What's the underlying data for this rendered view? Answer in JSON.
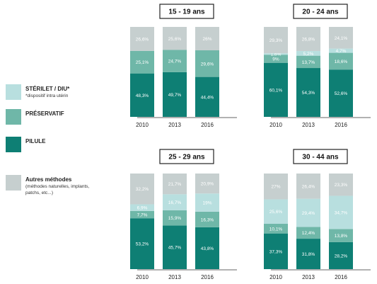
{
  "colors": {
    "sterilet": "#b8dfdf",
    "preservatif": "#6fb7a8",
    "pilule": "#0e7f74",
    "autres": "#c6cfcf",
    "text_light": "#ffffff",
    "text_dark": "#222222"
  },
  "legend": [
    {
      "key": "sterilet",
      "label": "STÉRILET / DIU*",
      "note": "*dispositif intra utérin"
    },
    {
      "key": "preservatif",
      "label": "PRÉSERVATIF",
      "note": ""
    },
    {
      "key": "pilule",
      "label": "PILULE",
      "note": ""
    },
    {
      "key": "autres",
      "label": "Autres méthodes",
      "note": "(méthodes naturelles, implants,\npatchs, etc...)"
    }
  ],
  "chart_data": [
    {
      "type": "bar",
      "stacked": true,
      "title": "15 - 19 ans",
      "categories": [
        "2010",
        "2013",
        "2016"
      ],
      "ylim": [
        0,
        100
      ],
      "series": [
        {
          "key": "pilule",
          "values": [
            48.3,
            49.7,
            44.4
          ],
          "labels": [
            "48,3%",
            "49,7%",
            "44,4%"
          ]
        },
        {
          "key": "preservatif",
          "values": [
            25.1,
            24.7,
            29.6
          ],
          "labels": [
            "25,1%",
            "24,7%",
            "29,6%"
          ]
        },
        {
          "key": "sterilet",
          "values": [
            0,
            0,
            0
          ],
          "labels": [
            "",
            "",
            ""
          ]
        },
        {
          "key": "autres",
          "values": [
            26.6,
            25.6,
            26
          ],
          "labels": [
            "26,6%",
            "25,6%",
            "26%"
          ]
        }
      ]
    },
    {
      "type": "bar",
      "stacked": true,
      "title": "20 - 24 ans",
      "categories": [
        "2010",
        "2013",
        "2016"
      ],
      "ylim": [
        0,
        100
      ],
      "series": [
        {
          "key": "pilule",
          "values": [
            60.1,
            54.3,
            52.6
          ],
          "labels": [
            "60,1%",
            "54,3%",
            "52,6%"
          ]
        },
        {
          "key": "preservatif",
          "values": [
            9,
            13.7,
            18.6
          ],
          "labels": [
            "9%",
            "13,7%",
            "18,6%"
          ]
        },
        {
          "key": "sterilet",
          "values": [
            1.6,
            5.2,
            4.7
          ],
          "labels": [
            "1,6%",
            "5,2%",
            "4,7%"
          ]
        },
        {
          "key": "autres",
          "values": [
            29.3,
            26.8,
            24.1
          ],
          "labels": [
            "29,3%",
            "26,8%",
            "24,1%"
          ]
        }
      ]
    },
    {
      "type": "bar",
      "stacked": true,
      "title": "25 - 29 ans",
      "categories": [
        "2010",
        "2013",
        "2016"
      ],
      "ylim": [
        0,
        100
      ],
      "series": [
        {
          "key": "pilule",
          "values": [
            53.2,
            45.7,
            43.8
          ],
          "labels": [
            "53,2%",
            "45,7%",
            "43,8%"
          ]
        },
        {
          "key": "preservatif",
          "values": [
            7.7,
            15.9,
            16.3
          ],
          "labels": [
            "7,7%",
            "15,9%",
            "16,3%"
          ]
        },
        {
          "key": "sterilet",
          "values": [
            6.9,
            16.7,
            19
          ],
          "labels": [
            "6,9%",
            "16,7%",
            "19%"
          ]
        },
        {
          "key": "autres",
          "values": [
            32.2,
            21.7,
            20.9
          ],
          "labels": [
            "32,2%",
            "21,7%",
            "20,9%"
          ]
        }
      ]
    },
    {
      "type": "bar",
      "stacked": true,
      "title": "30 - 44 ans",
      "categories": [
        "2010",
        "2013",
        "2016"
      ],
      "ylim": [
        0,
        100
      ],
      "series": [
        {
          "key": "pilule",
          "values": [
            37.3,
            31.8,
            28.2
          ],
          "labels": [
            "37,3%",
            "31,8%",
            "28,2%"
          ]
        },
        {
          "key": "preservatif",
          "values": [
            10.1,
            12.4,
            13.8
          ],
          "labels": [
            "10,1%",
            "12,4%",
            "13,8%"
          ]
        },
        {
          "key": "sterilet",
          "values": [
            25.6,
            29.4,
            34.7
          ],
          "labels": [
            "25,6%",
            "29,4%",
            "34,7%"
          ]
        },
        {
          "key": "autres",
          "values": [
            27,
            26.4,
            23.3
          ],
          "labels": [
            "27%",
            "26,4%",
            "23,3%"
          ]
        }
      ]
    }
  ]
}
